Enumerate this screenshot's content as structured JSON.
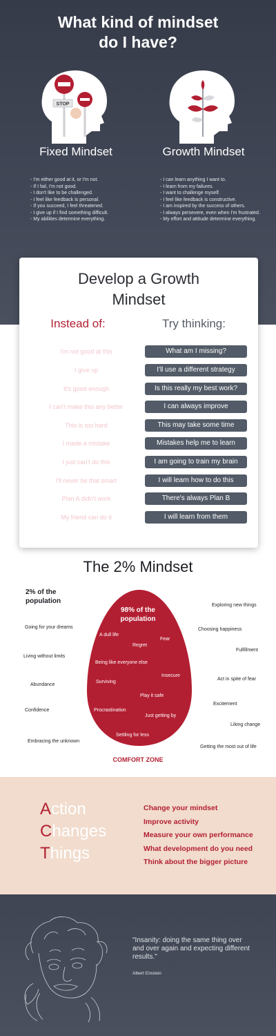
{
  "hero": {
    "title_line1": "What kind of mindset",
    "title_line2": "do I have?",
    "fixed": {
      "title": "Fixed Mindset",
      "stop_sign": "STOP",
      "items": [
        "- I'm either good at it, or I'm not.",
        "- If I fail, I'm not good.",
        "- I don't like to be challenged.",
        "- I feel like feedback is personal.",
        "- If you succeed, I feel threatened.",
        "- I give up if I find something difficult.",
        "- My abilities determine everything."
      ]
    },
    "growth": {
      "title": "Growth Mindset",
      "items": [
        "- I can learn anything I want to.",
        "- I learn from my failures.",
        " - I want to challenge myself.",
        "- I feel like feedback is constructive.",
        "- I am inspired by the success of others.",
        "- I always persevere, even when I'm frustrated.",
        "- My effort and attitude determine everything."
      ]
    }
  },
  "develop": {
    "title_line1": "Develop a Growth",
    "title_line2": "Mindset",
    "instead_label": "Instead of:",
    "try_label": "Try thinking:",
    "rows": [
      {
        "instead": "I'm not good at this",
        "try": "What am I missing?"
      },
      {
        "instead": "I give up",
        "try": "I'll use a different strategy"
      },
      {
        "instead": "It's good enough",
        "try": "Is this really my best work?"
      },
      {
        "instead": "I can't make this any better",
        "try": "I can always improve"
      },
      {
        "instead": "This is too hard",
        "try": "This may take some time"
      },
      {
        "instead": "I made a mistake",
        "try": "Mistakes help me to learn"
      },
      {
        "instead": "I just can't do this",
        "try": "I am going to train my brain"
      },
      {
        "instead": "I'll never be that smart",
        "try": "I will learn how to do this"
      },
      {
        "instead": "Plan A didn't work",
        "try": "There's always Plan B"
      },
      {
        "instead": "My friend can do it",
        "try": "I will learn from them"
      }
    ]
  },
  "two_percent": {
    "title": "The 2% Mindset",
    "population_line1": "2% of the",
    "population_line2": "population",
    "outside_left": [
      "Going for your dreams",
      "Living without limits",
      "Abundance",
      "Confidence",
      "Embracing the unknown"
    ],
    "outside_right": [
      "Exploring new things",
      "Choosing happiness",
      "Fulfillment",
      "Act in spite of fear",
      "Excitement",
      "Liking change",
      "Getting the most out of life"
    ],
    "egg_title_line1": "98% of the",
    "egg_title_line2": "population",
    "inside": [
      "A dull life",
      "Fear",
      "Regret",
      "Being like everyone else",
      "Insecure",
      "Surviving",
      "Play it safe",
      "Procrastination",
      "Just getting by",
      "Settling for less"
    ],
    "comfort_zone": "COMFORT ZONE",
    "colors": {
      "egg": "#b31f32",
      "accent": "#b31f32"
    }
  },
  "act": {
    "words": [
      {
        "cap": "A",
        "rest": "ction"
      },
      {
        "cap": "C",
        "rest": "hanges"
      },
      {
        "cap": "T",
        "rest": "hings"
      }
    ],
    "items": [
      "Change your mindset",
      "Improve activity",
      "Measure your own performance",
      "What development do you need",
      "Think about the bigger picture"
    ]
  },
  "quote": {
    "text": "\"Insanity: doing the same thing over and over again and expecting different results.\"",
    "author": "Albert Einstein"
  }
}
